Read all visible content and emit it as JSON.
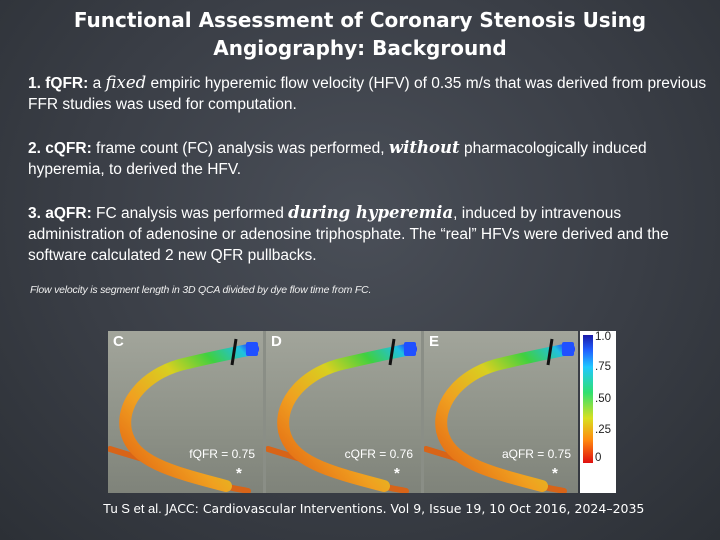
{
  "title_line1": "Functional Assessment of Coronary Stenosis Using",
  "title_line2": "Angiography: Background",
  "items": [
    {
      "label": "1. fQFR:",
      "pre": " a ",
      "emph": "fixed",
      "post": " empiric hyperemic flow velocity (HFV) of 0.35 m/s that was derived from previous FFR studies was used for computation."
    },
    {
      "label": "2. cQFR:",
      "pre": " frame count (FC) analysis was performed, ",
      "emph": "without",
      "post": " pharmacologically induced hyperemia, to derived the HFV."
    },
    {
      "label": "3. aQFR:",
      "pre": " FC analysis was performed ",
      "emph": "during hyperemia",
      "post": ", induced by intravenous administration of adenosine or adenosine triphosphate. The “real” HFVs were derived and the software calculated 2 new QFR pullbacks."
    }
  ],
  "note": "Flow velocity is segment length in 3D QCA divided by dye flow time from FC.",
  "panels": [
    {
      "label": "C",
      "value": "fQFR = 0.75",
      "star": "*"
    },
    {
      "label": "D",
      "value": "cQFR = 0.76",
      "star": "*"
    },
    {
      "label": "E",
      "value": "aQFR = 0.75",
      "star": "*"
    }
  ],
  "scale_ticks": [
    "1.0",
    ".75",
    ".50",
    ".25",
    "0"
  ],
  "citation": {
    "authors": "Tu S et al. ",
    "journal": "JACC: Cardiovascular Interventions. Vol 9, Issue 19, 10 Oct 2016, 2024–2035"
  }
}
